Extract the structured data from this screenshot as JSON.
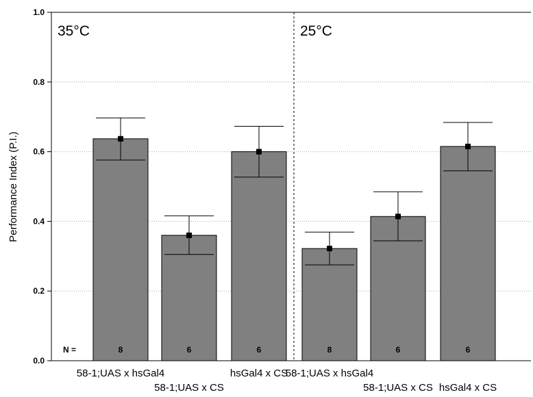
{
  "chart_data": {
    "type": "bar",
    "ylabel": "Performance Index (P.I.)",
    "ylim": [
      0,
      1.0
    ],
    "yticks": [
      "0.0",
      "0.2",
      "0.4",
      "0.6",
      "0.8",
      "1.0"
    ],
    "grid": "horizontal dotted",
    "n_prefix": "N =",
    "bar_color": "#808080",
    "panels": [
      {
        "label": "35°C",
        "bars": [
          {
            "category": "58-1;UAS x hsGal4",
            "value": 0.637,
            "error_low": 0.576,
            "error_high": 0.697,
            "n": "8"
          },
          {
            "category": "58-1;UAS x CS",
            "value": 0.36,
            "error_low": 0.305,
            "error_high": 0.416,
            "n": "6"
          },
          {
            "category": "hsGal4 x CS",
            "value": 0.6,
            "error_low": 0.527,
            "error_high": 0.673,
            "n": "6"
          }
        ]
      },
      {
        "label": "25°C",
        "bars": [
          {
            "category": "58-1;UAS x hsGal4",
            "value": 0.322,
            "error_low": 0.275,
            "error_high": 0.369,
            "n": "8"
          },
          {
            "category": "58-1;UAS x CS",
            "value": 0.414,
            "error_low": 0.344,
            "error_high": 0.485,
            "n": "6"
          },
          {
            "category": "hsGal4 x CS",
            "value": 0.615,
            "error_low": 0.545,
            "error_high": 0.684,
            "n": "6"
          }
        ]
      }
    ]
  }
}
